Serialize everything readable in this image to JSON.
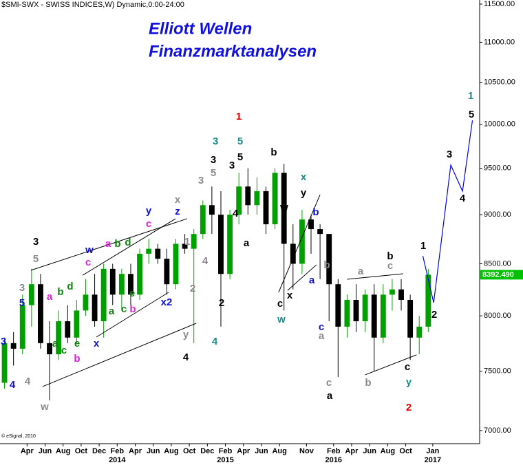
{
  "chart_data": {
    "type": "candlestick",
    "header": "$SMI-SWX - SWISS INDICES,W) Dynamic,0:00-24:00",
    "title": "Elliott Wellen",
    "subtitle": "Finanzmarktanalysen",
    "copyright": "© eSignal, 2010",
    "log_scale": true,
    "xlim": [
      0,
      53.2
    ],
    "ylim": [
      6894,
      11555
    ],
    "xticks": [
      {
        "value": 3,
        "label": "Apr"
      },
      {
        "value": 5,
        "label": "Jun"
      },
      {
        "value": 7,
        "label": "Aug"
      },
      {
        "value": 9,
        "label": "Oct"
      },
      {
        "value": 11,
        "label": "Dec"
      },
      {
        "value": 13,
        "label": "Feb"
      },
      {
        "value": 15,
        "label": "Apr"
      },
      {
        "value": 17,
        "label": "Jun"
      },
      {
        "value": 19,
        "label": "Aug"
      },
      {
        "value": 21,
        "label": "Oct"
      },
      {
        "value": 23,
        "label": "Dec"
      },
      {
        "value": 25,
        "label": "Feb"
      },
      {
        "value": 27,
        "label": "Apr"
      },
      {
        "value": 29,
        "label": "Jun"
      },
      {
        "value": 31,
        "label": "Aug"
      },
      {
        "value": 34,
        "label": "Nov"
      },
      {
        "value": 37,
        "label": "Feb"
      },
      {
        "value": 39,
        "label": "Apr"
      },
      {
        "value": 41,
        "label": "Jun"
      },
      {
        "value": 43,
        "label": "Aug"
      },
      {
        "value": 45,
        "label": "Oct"
      },
      {
        "value": 48,
        "label": "Jan"
      }
    ],
    "year_ticks": [
      {
        "value": 13,
        "label": "2014"
      },
      {
        "value": 25,
        "label": "2015"
      },
      {
        "value": 37,
        "label": "2016"
      },
      {
        "value": 48,
        "label": "2017"
      }
    ],
    "yticks": [
      {
        "value": 7000,
        "label": "7000.00"
      },
      {
        "value": 7500,
        "label": "7500.00"
      },
      {
        "value": 8000,
        "label": "8000.00"
      },
      {
        "value": 8500,
        "label": "8500.00"
      },
      {
        "value": 9000,
        "label": "9000.00"
      },
      {
        "value": 9500,
        "label": "9500.00"
      },
      {
        "value": 10000,
        "label": "10000.00"
      },
      {
        "value": 10500,
        "label": "10500.00"
      },
      {
        "value": 11000,
        "label": "11000.00"
      },
      {
        "value": 11500,
        "label": "11500.00"
      }
    ],
    "up_color": "#00a000",
    "down_color": "#000000",
    "x": [
      0.5,
      1.5,
      2.5,
      3.5,
      4.5,
      5.5,
      6.5,
      7.5,
      8.5,
      9.5,
      10.5,
      11.5,
      12.5,
      13.5,
      14.5,
      15.5,
      16.5,
      17.5,
      18.5,
      19.5,
      20.5,
      21.5,
      22.5,
      23.5,
      24.5,
      25.5,
      26.5,
      27.5,
      28.5,
      29.5,
      30.5,
      31.5,
      32.5,
      33.5,
      34.5,
      35.5,
      36.5,
      37.5,
      38.5,
      39.5,
      40.5,
      41.5,
      42.5,
      43.5,
      44.5,
      45.5,
      46.5,
      47.5
    ],
    "open": [
      7400,
      7750,
      7700,
      8100,
      8300,
      7750,
      7650,
      7950,
      7800,
      8050,
      8200,
      7950,
      8450,
      8200,
      8400,
      8200,
      8600,
      8650,
      8550,
      8300,
      8700,
      8650,
      8800,
      9100,
      9000,
      8400,
      9000,
      9300,
      9100,
      9250,
      8900,
      9450,
      8700,
      8500,
      8950,
      8850,
      8800,
      8300,
      7900,
      8150,
      7950,
      8200,
      7800,
      8200,
      8250,
      8150,
      7800,
      7900
    ],
    "high": [
      7800,
      7850,
      8200,
      8450,
      8400,
      7950,
      8050,
      8100,
      8150,
      8350,
      8400,
      8500,
      8500,
      8450,
      8500,
      8650,
      8750,
      8700,
      8650,
      8750,
      8800,
      8850,
      9150,
      9300,
      9250,
      9050,
      9450,
      9500,
      9400,
      9300,
      9500,
      9550,
      8900,
      9050,
      9000,
      8900,
      8800,
      8350,
      8200,
      8300,
      8250,
      8300,
      8300,
      8350,
      8350,
      8200,
      8000,
      8450
    ],
    "low": [
      7350,
      7550,
      7650,
      7900,
      7700,
      7250,
      7600,
      7750,
      7750,
      8000,
      7900,
      7800,
      8100,
      8050,
      8100,
      8150,
      8500,
      8500,
      8200,
      8250,
      8600,
      7750,
      8750,
      8800,
      7900,
      8350,
      8900,
      9000,
      9000,
      8800,
      8850,
      8050,
      8250,
      8400,
      8600,
      8350,
      7950,
      7450,
      7800,
      7850,
      7850,
      7500,
      7750,
      8050,
      8050,
      7600,
      7650,
      7850
    ],
    "close": [
      7750,
      7700,
      8100,
      8300,
      7750,
      7650,
      7950,
      7800,
      8050,
      8200,
      7950,
      8450,
      8200,
      8400,
      8200,
      8600,
      8650,
      8550,
      8300,
      8700,
      8650,
      8800,
      9100,
      9000,
      8400,
      9000,
      9300,
      9100,
      9250,
      8900,
      9450,
      8700,
      8500,
      8950,
      8850,
      8800,
      8300,
      7900,
      8150,
      7950,
      8200,
      7800,
      8200,
      8250,
      8150,
      7800,
      7900,
      8392.49
    ],
    "last_price": {
      "value": 8392.49,
      "label": "8392.490",
      "color": "#00c000"
    },
    "forecast": {
      "color": "#0000ee",
      "x": [
        46.9,
        48.1,
        50,
        51.3,
        52.4
      ],
      "values": [
        8578,
        8124,
        9535,
        9249,
        10045
      ]
    },
    "trendlines": [
      {
        "color": "#000000",
        "x": [
          3.44,
          20.76
        ],
        "values": [
          8436,
          8958
        ]
      },
      {
        "color": "#000000",
        "x": [
          4.73,
          21.76
        ],
        "values": [
          7368,
          7931
        ]
      },
      {
        "color": "#000000",
        "x": [
          9.16,
          19.47
        ],
        "values": [
          8387,
          8958
        ]
      },
      {
        "color": "#000000",
        "x": [
          10.69,
          18.7
        ],
        "values": [
          7805,
          8222
        ]
      },
      {
        "color": "#000000",
        "x": [
          30.9,
          35.5
        ],
        "values": [
          8222,
          9212
        ]
      },
      {
        "color": "#000000",
        "x": [
          31.9,
          35.1
        ],
        "values": [
          8241,
          8490
        ]
      },
      {
        "color": "#000000",
        "x": [
          38.5,
          44.7
        ],
        "values": [
          8348,
          8402
        ]
      },
      {
        "color": "#000000",
        "x": [
          40.5,
          46.2
        ],
        "values": [
          7469,
          7645
        ]
      }
    ],
    "wave_labels": [
      {
        "text": "3",
        "color": "#1010d0"
      },
      {
        "text": "4",
        "color": "#1010d0"
      },
      {
        "text": "4",
        "color": "#8a8a8a"
      },
      {
        "text": "w",
        "color": "#8a8a8a"
      },
      {
        "text": "5",
        "color": "#1010d0"
      },
      {
        "text": "3",
        "color": "#8a8a8a"
      },
      {
        "text": "5",
        "color": "#8a8a8a"
      },
      {
        "text": "3",
        "color": "#000000"
      },
      {
        "text": "a",
        "color": "#e020e0"
      },
      {
        "text": "b",
        "color": "#108010"
      },
      {
        "text": "d",
        "color": "#108010"
      },
      {
        "text": "a",
        "color": "#108010"
      },
      {
        "text": "c",
        "color": "#108010"
      },
      {
        "text": "e",
        "color": "#108010"
      },
      {
        "text": "b",
        "color": "#e020e0"
      },
      {
        "text": "x",
        "color": "#1010d0"
      },
      {
        "text": "w",
        "color": "#1010d0"
      },
      {
        "text": "c",
        "color": "#e020e0"
      },
      {
        "text": "a",
        "color": "#e020e0"
      },
      {
        "text": "b",
        "color": "#108010"
      },
      {
        "text": "d",
        "color": "#108010"
      },
      {
        "text": "a",
        "color": "#108010"
      },
      {
        "text": "c",
        "color": "#108010"
      },
      {
        "text": "b",
        "color": "#e020e0"
      },
      {
        "text": "e",
        "color": "#108010"
      },
      {
        "text": "y",
        "color": "#1010d0"
      },
      {
        "text": "c",
        "color": "#e020e0"
      },
      {
        "text": "z",
        "color": "#1010d0"
      },
      {
        "text": "x",
        "color": "#8a8a8a"
      },
      {
        "text": "x2",
        "color": "#1010d0"
      },
      {
        "text": "1",
        "color": "#8a8a8a"
      },
      {
        "text": "2",
        "color": "#8a8a8a"
      },
      {
        "text": "y",
        "color": "#8a8a8a"
      },
      {
        "text": "4",
        "color": "#000000"
      },
      {
        "text": "3",
        "color": "#8a8a8a"
      },
      {
        "text": "5",
        "color": "#8a8a8a"
      },
      {
        "text": "3",
        "color": "#000000"
      },
      {
        "text": "4",
        "color": "#8a8a8a"
      },
      {
        "text": "2",
        "color": "#000000"
      },
      {
        "text": "4",
        "color": "#1a8a8a",
        "large": true
      },
      {
        "text": "3",
        "color": "#1a8a8a",
        "large": true
      },
      {
        "text": "5",
        "color": "#1a8a8a",
        "large": true
      },
      {
        "text": "1",
        "color": "#e00000",
        "large": true
      },
      {
        "text": "5",
        "color": "#000000"
      },
      {
        "text": "3",
        "color": "#000000"
      },
      {
        "text": "4",
        "color": "#000000"
      },
      {
        "text": "a",
        "color": "#000000"
      },
      {
        "text": "b",
        "color": "#000000"
      },
      {
        "text": "x",
        "color": "#1a8a8a",
        "large": true
      },
      {
        "text": "y",
        "color": "#000000"
      },
      {
        "text": "w",
        "color": "#000000"
      },
      {
        "text": "b",
        "color": "#1010d0"
      },
      {
        "text": "a",
        "color": "#1010d0"
      },
      {
        "text": "c",
        "color": "#000000"
      },
      {
        "text": "x",
        "color": "#000000"
      },
      {
        "text": "w",
        "color": "#1a8a8a",
        "large": true
      },
      {
        "text": "b",
        "color": "#8a8a8a"
      },
      {
        "text": "c",
        "color": "#1010d0"
      },
      {
        "text": "a",
        "color": "#8a8a8a"
      },
      {
        "text": "c",
        "color": "#8a8a8a"
      },
      {
        "text": "a",
        "color": "#000000"
      },
      {
        "text": "a",
        "color": "#8a8a8a"
      },
      {
        "text": "c",
        "color": "#8a8a8a"
      },
      {
        "text": "b",
        "color": "#000000"
      },
      {
        "text": "b",
        "color": "#8a8a8a"
      },
      {
        "text": "c",
        "color": "#000000"
      },
      {
        "text": "y",
        "color": "#1a8a8a",
        "large": true
      },
      {
        "text": "2",
        "color": "#e00000",
        "large": true
      },
      {
        "text": "1",
        "color": "#000000"
      },
      {
        "text": "2",
        "color": "#000000"
      },
      {
        "text": "3",
        "color": "#000000"
      },
      {
        "text": "4",
        "color": "#000000"
      },
      {
        "text": "5",
        "color": "#000000"
      },
      {
        "text": "1",
        "color": "#1a8a8a",
        "large": true
      }
    ]
  }
}
